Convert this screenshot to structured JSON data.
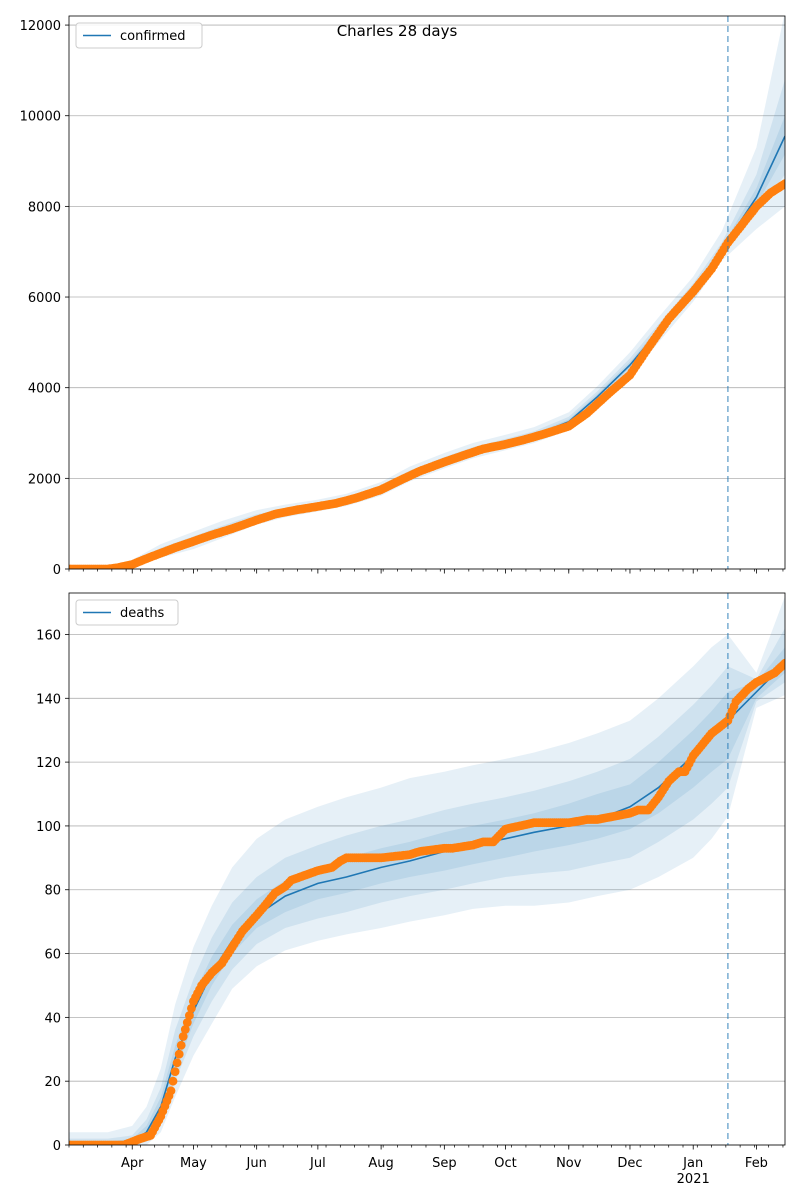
{
  "title": "Charles 28 days",
  "colors": {
    "model_line": "#1f77b4",
    "band": "#1f77b4",
    "observed": "#ff7f0e",
    "grid": "#b0b0b0",
    "forecast_line": "#1f77b4"
  },
  "x_axis": {
    "start": "2020-03-01",
    "end": "2021-02-15",
    "forecast_start": "2021-01-18",
    "year_label": "2021",
    "ticks": [
      {
        "date": "2020-04-01",
        "label": "Apr"
      },
      {
        "date": "2020-05-01",
        "label": "May"
      },
      {
        "date": "2020-06-01",
        "label": "Jun"
      },
      {
        "date": "2020-07-01",
        "label": "Jul"
      },
      {
        "date": "2020-08-01",
        "label": "Aug"
      },
      {
        "date": "2020-09-01",
        "label": "Sep"
      },
      {
        "date": "2020-10-01",
        "label": "Oct"
      },
      {
        "date": "2020-11-01",
        "label": "Nov"
      },
      {
        "date": "2020-12-01",
        "label": "Dec"
      },
      {
        "date": "2021-01-01",
        "label": "Jan"
      },
      {
        "date": "2021-02-01",
        "label": "Feb"
      }
    ]
  },
  "chart_data": [
    {
      "type": "line",
      "legend": "confirmed",
      "legend_position": "top-left",
      "grid": "horizontal",
      "ylim": [
        0,
        12200
      ],
      "yticks": [
        0,
        2000,
        4000,
        6000,
        8000,
        10000,
        12000
      ],
      "model": {
        "name": "confirmed",
        "dates": [
          "2020-03-01",
          "2020-03-20",
          "2020-04-01",
          "2020-04-15",
          "2020-05-01",
          "2020-05-15",
          "2020-06-01",
          "2020-06-15",
          "2020-07-01",
          "2020-07-15",
          "2020-08-01",
          "2020-08-15",
          "2020-09-01",
          "2020-09-15",
          "2020-10-01",
          "2020-10-15",
          "2020-11-01",
          "2020-11-15",
          "2020-12-01",
          "2020-12-15",
          "2021-01-01",
          "2021-01-15",
          "2021-02-01",
          "2021-02-15"
        ],
        "values": [
          0,
          10,
          100,
          380,
          620,
          850,
          1120,
          1260,
          1380,
          1500,
          1750,
          2080,
          2380,
          2600,
          2780,
          2950,
          3250,
          3800,
          4500,
          5250,
          6150,
          7050,
          8200,
          9550
        ],
        "bands": [
          {
            "level": "outer",
            "lower": [
              0,
              0,
              30,
              250,
              440,
              680,
              980,
              1140,
              1270,
              1390,
              1620,
              1930,
              2220,
              2440,
              2620,
              2780,
              3060,
              3600,
              4250,
              5000,
              5900,
              6800,
              7500,
              8000
            ],
            "upper": [
              50,
              60,
              200,
              550,
              820,
              1060,
              1300,
              1420,
              1530,
              1660,
              1920,
              2260,
              2560,
              2780,
              2960,
              3130,
              3460,
              4030,
              4780,
              5550,
              6450,
              7450,
              9300,
              12300
            ]
          },
          {
            "level": "middle",
            "lower": [
              0,
              0,
              60,
              300,
              520,
              750,
              1040,
              1190,
              1320,
              1440,
              1680,
              2000,
              2290,
              2510,
              2690,
              2860,
              3150,
              3690,
              4370,
              5120,
              6020,
              6930,
              7850,
              8700
            ],
            "upper": [
              30,
              40,
              150,
              470,
              720,
              950,
              1210,
              1340,
              1460,
              1580,
              1840,
              2170,
              2470,
              2690,
              2870,
              3040,
              3360,
              3920,
              4650,
              5400,
              6300,
              7200,
              8700,
              10800
            ]
          },
          {
            "level": "inner",
            "lower": [
              0,
              5,
              80,
              340,
              580,
              810,
              1080,
              1230,
              1350,
              1470,
              1720,
              2040,
              2340,
              2560,
              2740,
              2910,
              3200,
              3750,
              4440,
              5190,
              6090,
              6990,
              8030,
              9150
            ],
            "upper": [
              15,
              20,
              120,
              420,
              660,
              890,
              1160,
              1290,
              1410,
              1530,
              1790,
              2120,
              2420,
              2640,
              2820,
              2990,
              3300,
              3860,
              4570,
              5320,
              6220,
              7110,
              8400,
              10000
            ]
          }
        ]
      },
      "observed": {
        "name": "observed confirmed",
        "dates": [
          "2020-03-01",
          "2020-03-10",
          "2020-03-20",
          "2020-03-25",
          "2020-04-01",
          "2020-04-08",
          "2020-04-15",
          "2020-04-22",
          "2020-05-01",
          "2020-05-10",
          "2020-05-20",
          "2020-06-01",
          "2020-06-10",
          "2020-06-20",
          "2020-07-01",
          "2020-07-10",
          "2020-07-20",
          "2020-08-01",
          "2020-08-10",
          "2020-08-20",
          "2020-09-01",
          "2020-09-10",
          "2020-09-20",
          "2020-10-01",
          "2020-10-10",
          "2020-10-20",
          "2020-11-01",
          "2020-11-10",
          "2020-11-20",
          "2020-12-01",
          "2020-12-10",
          "2020-12-20",
          "2021-01-01",
          "2021-01-10",
          "2021-01-18",
          "2021-01-25",
          "2021-02-01",
          "2021-02-08",
          "2021-02-15"
        ],
        "values": [
          0,
          0,
          0,
          30,
          100,
          230,
          350,
          470,
          610,
          750,
          890,
          1080,
          1210,
          1300,
          1380,
          1450,
          1570,
          1750,
          1950,
          2160,
          2360,
          2500,
          2650,
          2750,
          2850,
          2980,
          3150,
          3440,
          3850,
          4280,
          4880,
          5520,
          6120,
          6620,
          7200,
          7600,
          8000,
          8300,
          8500
        ]
      }
    },
    {
      "type": "line",
      "legend": "deaths",
      "legend_position": "top-left",
      "grid": "horizontal",
      "ylim": [
        0,
        173
      ],
      "yticks": [
        0,
        20,
        40,
        60,
        80,
        100,
        120,
        140,
        160
      ],
      "model": {
        "name": "deaths",
        "dates": [
          "2020-03-01",
          "2020-03-20",
          "2020-04-01",
          "2020-04-08",
          "2020-04-15",
          "2020-04-22",
          "2020-05-01",
          "2020-05-10",
          "2020-05-20",
          "2020-06-01",
          "2020-06-15",
          "2020-07-01",
          "2020-07-15",
          "2020-08-01",
          "2020-08-15",
          "2020-09-01",
          "2020-09-15",
          "2020-10-01",
          "2020-10-15",
          "2020-11-01",
          "2020-11-15",
          "2020-12-01",
          "2020-12-15",
          "2021-01-01",
          "2021-01-10",
          "2021-01-18",
          "2021-02-01",
          "2021-02-15"
        ],
        "values": [
          0,
          0,
          1,
          4,
          12,
          27,
          42,
          54,
          64,
          72,
          78,
          82,
          84,
          87,
          89,
          92,
          94,
          96,
          98,
          100,
          102,
          106,
          112,
          122,
          128,
          133,
          142,
          151
        ],
        "bands": [
          {
            "level": "outer",
            "lower": [
              0,
              0,
              0,
              0,
              4,
              15,
              28,
              38,
              49,
              56,
              61,
              64,
              66,
              68,
              70,
              72,
              74,
              75,
              75,
              76,
              78,
              80,
              84,
              90,
              96,
              103,
              137,
              141
            ],
            "upper": [
              4,
              4,
              6,
              12,
              24,
              44,
              62,
              75,
              87,
              96,
              102,
              106,
              109,
              112,
              115,
              117,
              119,
              121,
              123,
              126,
              129,
              133,
              140,
              150,
              156,
              160,
              148,
              172
            ]
          },
          {
            "level": "middle",
            "lower": [
              0,
              0,
              0,
              1,
              7,
              20,
              34,
              45,
              55,
              63,
              68,
              71,
              73,
              76,
              78,
              80,
              82,
              84,
              85,
              86,
              88,
              90,
              95,
              102,
              107,
              112,
              139,
              145
            ],
            "upper": [
              2,
              2,
              3,
              8,
              18,
              36,
              52,
              65,
              76,
              84,
              90,
              94,
              97,
              100,
              102,
              105,
              107,
              109,
              111,
              114,
              117,
              121,
              128,
              138,
              144,
              150,
              146,
              162
            ]
          },
          {
            "level": "inner",
            "lower": [
              0,
              0,
              0,
              2,
              9,
              23,
              38,
              50,
              60,
              68,
              73,
              77,
              79,
              82,
              84,
              86,
              88,
              90,
              92,
              94,
              96,
              99,
              104,
              112,
              117,
              121,
              140,
              148
            ],
            "upper": [
              1,
              1,
              2,
              6,
              15,
              31,
              47,
              59,
              69,
              77,
              83,
              87,
              90,
              93,
              95,
              98,
              100,
              102,
              104,
              107,
              110,
              113,
              120,
              130,
              136,
              142,
              145,
              156
            ]
          }
        ]
      },
      "observed": {
        "name": "observed deaths",
        "dates": [
          "2020-03-01",
          "2020-03-10",
          "2020-03-20",
          "2020-03-28",
          "2020-04-01",
          "2020-04-05",
          "2020-04-10",
          "2020-04-15",
          "2020-04-20",
          "2020-04-22",
          "2020-04-26",
          "2020-05-01",
          "2020-05-05",
          "2020-05-10",
          "2020-05-15",
          "2020-05-20",
          "2020-05-25",
          "2020-06-01",
          "2020-06-05",
          "2020-06-10",
          "2020-06-15",
          "2020-06-18",
          "2020-07-01",
          "2020-07-08",
          "2020-07-12",
          "2020-07-15",
          "2020-08-01",
          "2020-08-15",
          "2020-08-20",
          "2020-09-01",
          "2020-09-05",
          "2020-09-15",
          "2020-09-20",
          "2020-09-25",
          "2020-10-01",
          "2020-10-15",
          "2020-11-01",
          "2020-11-10",
          "2020-11-15",
          "2020-12-01",
          "2020-12-05",
          "2020-12-10",
          "2020-12-15",
          "2020-12-20",
          "2020-12-25",
          "2020-12-28",
          "2021-01-01",
          "2021-01-10",
          "2021-01-18",
          "2021-01-22",
          "2021-01-28",
          "2021-02-01",
          "2021-02-10",
          "2021-02-15"
        ],
        "values": [
          0,
          0,
          0,
          0,
          1,
          2,
          3,
          9,
          17,
          23,
          34,
          45,
          50,
          54,
          57,
          62,
          67,
          72,
          75,
          79,
          81,
          83,
          86,
          87,
          89,
          90,
          90,
          91,
          92,
          93,
          93,
          94,
          95,
          95,
          99,
          101,
          101,
          102,
          102,
          104,
          105,
          105,
          109,
          114,
          117,
          117,
          122,
          129,
          133,
          139,
          143,
          145,
          148,
          151
        ]
      }
    }
  ]
}
